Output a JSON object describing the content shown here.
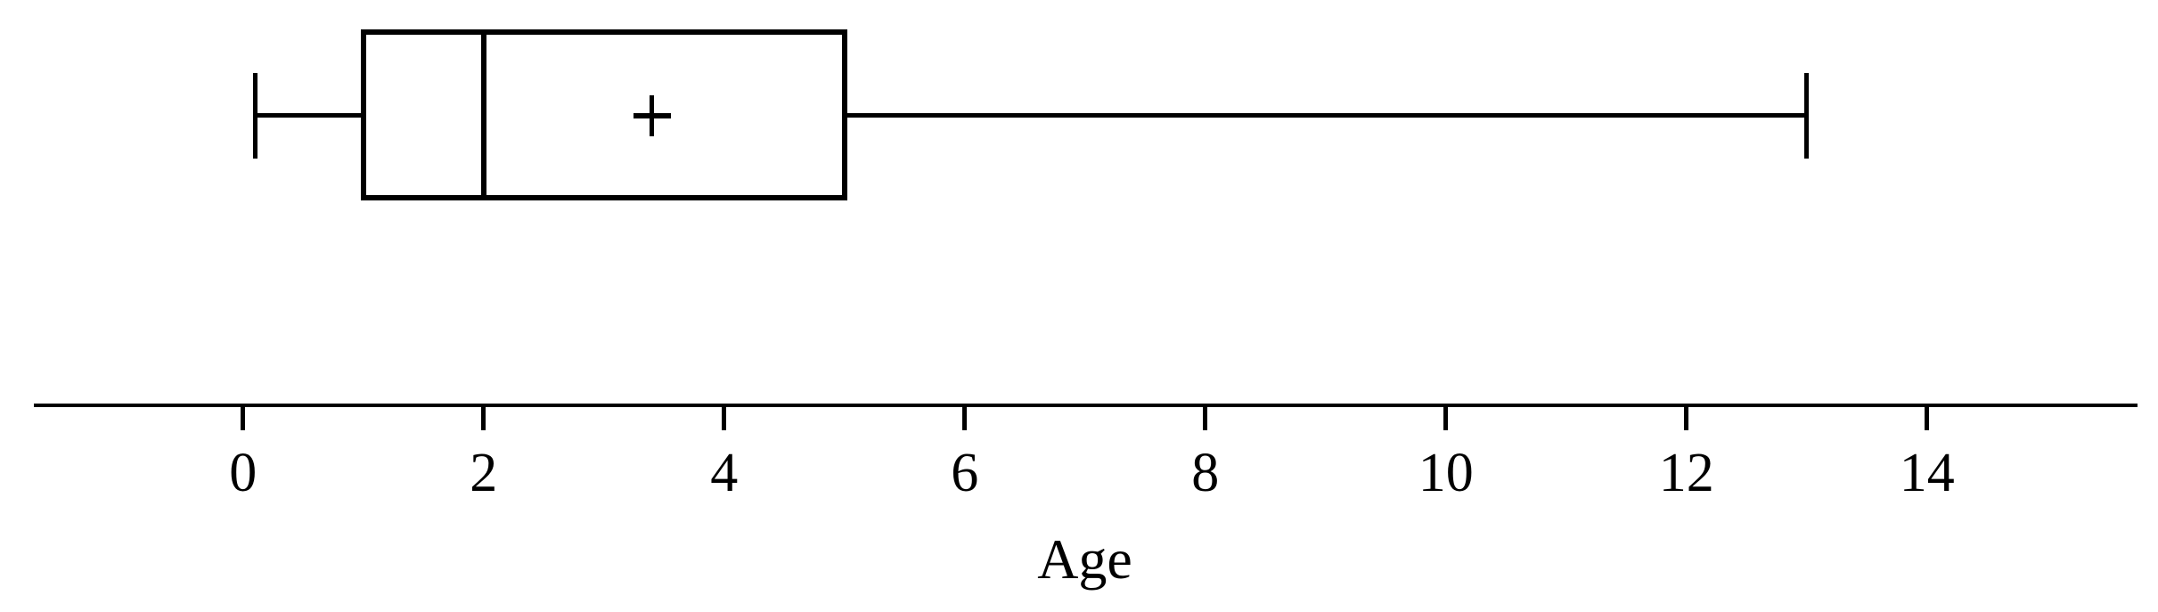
{
  "figure": {
    "background_color": "#ffffff",
    "line_color": "#000000"
  },
  "chart_data": {
    "type": "boxplot",
    "orientation": "horizontal",
    "title": "",
    "xlabel": "Age",
    "ylabel": "",
    "x_ticks": [
      0,
      2,
      4,
      6,
      8,
      10,
      12,
      14
    ],
    "xlim": [
      -1.7,
      15.7
    ],
    "grid": false,
    "legend": null,
    "series": [
      {
        "name": "Age",
        "min": 0.1,
        "q1": 1,
        "median": 2,
        "q3": 5,
        "max": 13,
        "mean": 3.4,
        "mean_marker": "plus",
        "outliers": []
      }
    ]
  }
}
